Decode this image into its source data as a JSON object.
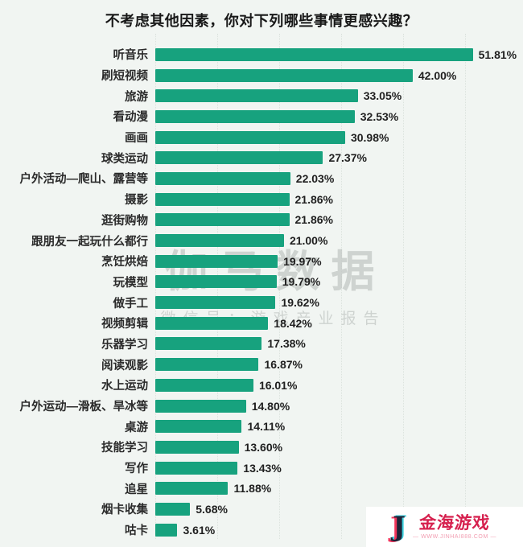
{
  "title": "不考虑其他因素，你对下列哪些事情更感兴趣？",
  "colors": {
    "bar": "#17A27E",
    "background": "#F1F5F2",
    "grid": "#DCE3DE",
    "text": "#1F1F1F",
    "watermark": "#C3C8C5",
    "logo_red": "#D6204E",
    "logo_pink": "#F29DB1",
    "logo_navy": "#1E2438",
    "logo_cyan": "#39D2DF"
  },
  "chart_data": {
    "type": "bar",
    "orientation": "horizontal",
    "title": "不考虑其他因素，你对下列哪些事情更感兴趣？",
    "categories": [
      "听音乐",
      "刷短视频",
      "旅游",
      "看动漫",
      "画画",
      "球类运动",
      "户外活动—爬山、露营等",
      "摄影",
      "逛街购物",
      "跟朋友一起玩什么都行",
      "烹饪烘焙",
      "玩模型",
      "做手工",
      "视频剪辑",
      "乐器学习",
      "阅读观影",
      "水上运动",
      "户外运动—滑板、旱冰等",
      "桌游",
      "技能学习",
      "写作",
      "追星",
      "烟卡收集",
      "咕卡"
    ],
    "values": [
      51.81,
      42.0,
      33.05,
      32.53,
      30.98,
      27.37,
      22.03,
      21.86,
      21.86,
      21.0,
      19.97,
      19.79,
      19.62,
      18.42,
      17.38,
      16.87,
      16.01,
      14.8,
      14.11,
      13.6,
      13.43,
      11.88,
      5.68,
      3.61
    ],
    "value_labels": [
      "51.81%",
      "42.00%",
      "33.05%",
      "32.53%",
      "30.98%",
      "27.37%",
      "22.03%",
      "21.86%",
      "21.86%",
      "21.00%",
      "19.97%",
      "19.79%",
      "19.62%",
      "18.42%",
      "17.38%",
      "16.87%",
      "16.01%",
      "14.80%",
      "14.11%",
      "13.60%",
      "13.43%",
      "11.88%",
      "5.68%",
      "3.61%"
    ],
    "xlabel": "",
    "ylabel": "",
    "xlim": [
      0,
      60
    ],
    "grid": "vertical dotted gridlines every 10%",
    "legend": "none",
    "bar_color": "#17A27E"
  },
  "watermark": {
    "main": "伽马数据",
    "sub": "微信号：游戏产业报告"
  },
  "logo": {
    "glyph": "J",
    "name": "金海游戏",
    "url": "— WWW.JINHAI888.COM —"
  }
}
